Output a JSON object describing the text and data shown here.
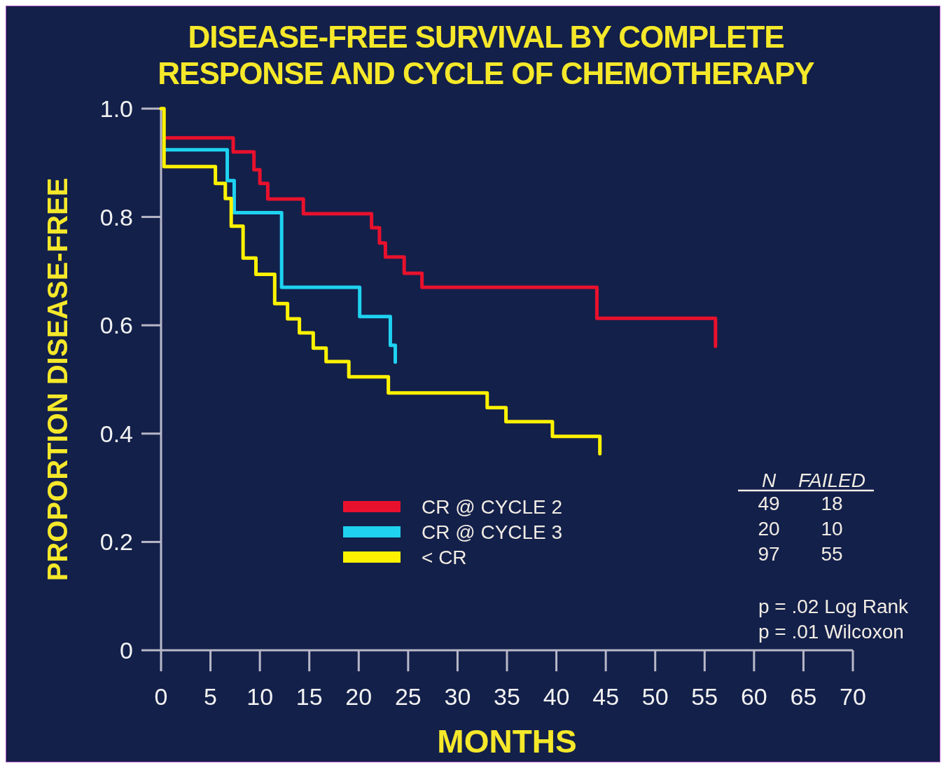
{
  "chart_data": {
    "type": "step",
    "title": "DISEASE-FREE SURVIVAL BY COMPLETE\nRESPONSE AND CYCLE OF CHEMOTHERAPY",
    "xlabel": "MONTHS",
    "ylabel": "PROPORTION DISEASE-FREE",
    "xlim": [
      0,
      70
    ],
    "xticks": [
      0,
      5,
      10,
      15,
      20,
      25,
      30,
      35,
      40,
      45,
      50,
      55,
      60,
      65,
      70
    ],
    "ylim": [
      0,
      1
    ],
    "yticks": [
      {
        "value": 0,
        "label": "0"
      },
      {
        "value": 0.2,
        "label": "0.2"
      },
      {
        "value": 0.4,
        "label": "0.4"
      },
      {
        "value": 0.6,
        "label": "0.6"
      },
      {
        "value": 0.8,
        "label": "0.8"
      },
      {
        "value": 1,
        "label": "1.0"
      }
    ],
    "grid": false,
    "legend": "bottom",
    "marker": "none",
    "line_style": "solid",
    "series": [
      {
        "name": "CR @ CYCLE 2",
        "color": "#e8112d",
        "x": [
          0.3,
          7.3,
          9.4,
          10.0,
          10.8,
          14.4,
          21.3,
          22.1,
          22.7,
          24.6,
          26.4,
          44.1,
          56.1,
          56.1
        ],
        "values": [
          0.946,
          0.92,
          0.887,
          0.862,
          0.833,
          0.806,
          0.78,
          0.752,
          0.726,
          0.696,
          0.67,
          0.613,
          0.613,
          0.561
        ]
      },
      {
        "name": "CR @ CYCLE 3",
        "color": "#1ed2f0",
        "x": [
          0.3,
          6.7,
          7.4,
          12.2,
          20.1,
          23.2,
          23.7,
          23.7
        ],
        "values": [
          0.924,
          0.867,
          0.808,
          0.67,
          0.616,
          0.563,
          0.563,
          0.532
        ]
      },
      {
        "name": "< CR",
        "color": "#fff200",
        "x": [
          0,
          0.3,
          5.5,
          6.5,
          7.1,
          8.3,
          9.6,
          11.5,
          12.8,
          14.0,
          15.4,
          16.7,
          19.0,
          23.0,
          33.0,
          34.9,
          39.6,
          44.4,
          44.4
        ],
        "values": [
          1.0,
          0.893,
          0.862,
          0.834,
          0.783,
          0.724,
          0.694,
          0.64,
          0.612,
          0.586,
          0.558,
          0.533,
          0.505,
          0.475,
          0.448,
          0.422,
          0.395,
          0.395,
          0.363
        ]
      }
    ],
    "annotations": [
      "N",
      "FAILED",
      "49",
      "18",
      "20",
      "10",
      "97",
      "55",
      "p = .02 Log Rank",
      "p = .01 Wilcoxon"
    ]
  }
}
